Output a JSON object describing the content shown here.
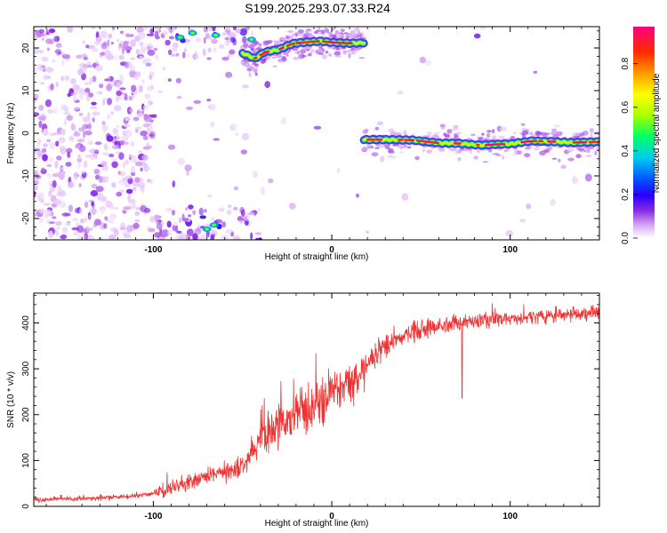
{
  "title": "S199.2025.293.07.33.R24",
  "colors": {
    "snr_line": "#ee3333",
    "frame": "#000000",
    "colorscale": [
      "#ffffff",
      "#d9a8f5",
      "#8a2be2",
      "#2a00ff",
      "#0055ff",
      "#00ccee",
      "#00ff66",
      "#a8ff00",
      "#ffff00",
      "#ff9900",
      "#ff2a00",
      "#ff0080"
    ]
  },
  "chart_data": [
    {
      "type": "heatmap",
      "name": "spectrogram",
      "title": "S199.2025.293.07.33.R24",
      "xlabel": "Height of straight line (km)",
      "ylabel": "Frequency (Hz)",
      "xlim": [
        -167,
        150
      ],
      "ylim": [
        -25,
        25
      ],
      "x_ticks": [
        -100,
        0,
        100
      ],
      "x_tick_labels": [
        "-100",
        "0",
        "100"
      ],
      "y_ticks": [
        20,
        10,
        0,
        -10,
        -20
      ],
      "y_tick_labels": [
        "20",
        "10",
        "0",
        "-10",
        "-20"
      ],
      "colorbar": {
        "label": "Normalized spectral amplitude",
        "range": [
          0,
          0.97
        ],
        "ticks": [
          0.0,
          0.2,
          0.4,
          0.6,
          0.8
        ],
        "tick_labels": [
          "0.0",
          "0.2",
          "0.4",
          "0.6",
          "0.8"
        ]
      },
      "tones": [
        {
          "name": "upper-tone",
          "x": [
            -50,
            -43,
            -38,
            -30,
            -22,
            -14,
            -6,
            0,
            10,
            18
          ],
          "freq": [
            18.8,
            17.5,
            19,
            19.6,
            21,
            21.4,
            21.6,
            21.3,
            21.1,
            21.2
          ]
        },
        {
          "name": "lower-tone",
          "x": [
            18,
            30,
            45,
            60,
            72,
            80,
            85,
            92,
            100,
            112,
            125,
            135,
            150
          ],
          "freq": [
            -1.5,
            -1.5,
            -1.6,
            -2.3,
            -2.4,
            -2.7,
            -2.8,
            -2.6,
            -2.5,
            -1.8,
            -2.0,
            -2.2,
            -2.0
          ]
        }
      ]
    },
    {
      "type": "line",
      "name": "snr",
      "xlabel": "Height of straight line (km)",
      "ylabel": "SNR (10 * v/v)",
      "xlim": [
        -167,
        150
      ],
      "ylim": [
        0,
        465
      ],
      "x_ticks": [
        -100,
        0,
        100
      ],
      "x_tick_labels": [
        "-100",
        "0",
        "100"
      ],
      "y_ticks": [
        0,
        100,
        200,
        300,
        400
      ],
      "y_tick_labels": [
        "0",
        "100",
        "200",
        "300",
        "400"
      ],
      "trend": {
        "x": [
          -167,
          -140,
          -120,
          -100,
          -90,
          -80,
          -70,
          -60,
          -50,
          -45,
          -40,
          -30,
          -20,
          -10,
          0,
          10,
          20,
          30,
          40,
          50,
          60,
          70,
          80,
          90,
          100,
          110,
          120,
          130,
          140,
          150
        ],
        "y": [
          15,
          17,
          20,
          27,
          40,
          55,
          65,
          75,
          88,
          120,
          150,
          180,
          200,
          220,
          250,
          270,
          315,
          350,
          370,
          385,
          395,
          400,
          405,
          408,
          410,
          413,
          415,
          418,
          420,
          425
        ]
      },
      "spikes": [
        {
          "x": 73,
          "y": 236
        }
      ]
    }
  ]
}
